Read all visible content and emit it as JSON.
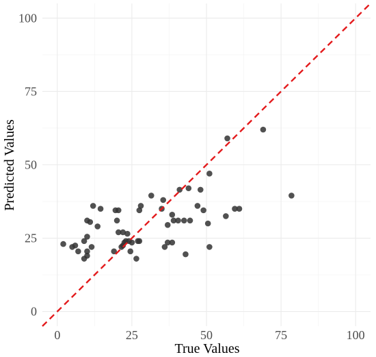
{
  "chart_data": {
    "type": "scatter",
    "title": "",
    "xlabel": "True Values",
    "ylabel": "Predicted Values",
    "xlim": [
      -5,
      105
    ],
    "ylim": [
      -5,
      105
    ],
    "x_ticks": [
      0,
      25,
      50,
      75,
      100
    ],
    "y_ticks": [
      0,
      25,
      50,
      75,
      100
    ],
    "grid": true,
    "reference_line": {
      "from": [
        -5,
        -5
      ],
      "to": [
        105,
        105
      ],
      "style": "dashed",
      "color": "#e31a1c"
    },
    "point_color": "#333333",
    "points": [
      {
        "x": 2,
        "y": 23
      },
      {
        "x": 5,
        "y": 22
      },
      {
        "x": 6,
        "y": 22.5
      },
      {
        "x": 7,
        "y": 20.5
      },
      {
        "x": 9,
        "y": 18
      },
      {
        "x": 9,
        "y": 24
      },
      {
        "x": 10,
        "y": 25.5
      },
      {
        "x": 10,
        "y": 20.5
      },
      {
        "x": 10,
        "y": 19
      },
      {
        "x": 10,
        "y": 31
      },
      {
        "x": 11,
        "y": 30.5
      },
      {
        "x": 11.5,
        "y": 22
      },
      {
        "x": 12,
        "y": 36
      },
      {
        "x": 13.5,
        "y": 29
      },
      {
        "x": 14.5,
        "y": 35
      },
      {
        "x": 19.5,
        "y": 34.5
      },
      {
        "x": 19,
        "y": 20.5
      },
      {
        "x": 20,
        "y": 31
      },
      {
        "x": 20.5,
        "y": 34.5
      },
      {
        "x": 20.5,
        "y": 27
      },
      {
        "x": 21.5,
        "y": 22
      },
      {
        "x": 22,
        "y": 22.5
      },
      {
        "x": 22,
        "y": 27
      },
      {
        "x": 22.5,
        "y": 23.5
      },
      {
        "x": 23,
        "y": 24
      },
      {
        "x": 23.5,
        "y": 26.5
      },
      {
        "x": 24,
        "y": 24
      },
      {
        "x": 24.5,
        "y": 20.5
      },
      {
        "x": 25,
        "y": 23.5
      },
      {
        "x": 26.5,
        "y": 18
      },
      {
        "x": 27,
        "y": 24
      },
      {
        "x": 27.5,
        "y": 34.5
      },
      {
        "x": 27.5,
        "y": 24
      },
      {
        "x": 28,
        "y": 36
      },
      {
        "x": 31.5,
        "y": 39.5
      },
      {
        "x": 35,
        "y": 35
      },
      {
        "x": 35.5,
        "y": 38
      },
      {
        "x": 36,
        "y": 22
      },
      {
        "x": 37,
        "y": 29.5
      },
      {
        "x": 37,
        "y": 23.5
      },
      {
        "x": 38.5,
        "y": 23.5
      },
      {
        "x": 38.5,
        "y": 33
      },
      {
        "x": 39,
        "y": 31
      },
      {
        "x": 40.5,
        "y": 31
      },
      {
        "x": 41,
        "y": 41.5
      },
      {
        "x": 42.5,
        "y": 31
      },
      {
        "x": 43,
        "y": 19.5
      },
      {
        "x": 44,
        "y": 42
      },
      {
        "x": 44.5,
        "y": 31
      },
      {
        "x": 47,
        "y": 36
      },
      {
        "x": 48,
        "y": 41.5
      },
      {
        "x": 49,
        "y": 34.5
      },
      {
        "x": 50.5,
        "y": 30
      },
      {
        "x": 51,
        "y": 22
      },
      {
        "x": 51,
        "y": 47
      },
      {
        "x": 56.5,
        "y": 32.5
      },
      {
        "x": 57,
        "y": 59
      },
      {
        "x": 59.5,
        "y": 35
      },
      {
        "x": 61,
        "y": 35
      },
      {
        "x": 69,
        "y": 62
      },
      {
        "x": 78.5,
        "y": 39.5
      }
    ]
  }
}
